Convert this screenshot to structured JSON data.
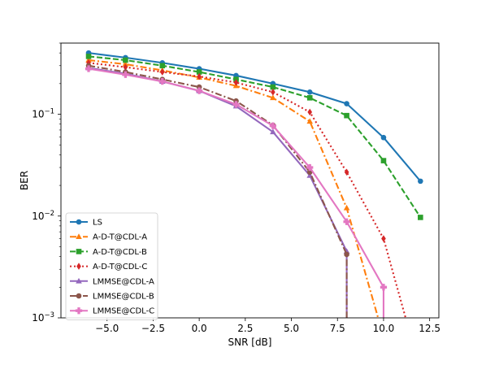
{
  "chart_data": {
    "type": "line",
    "xlabel": "SNR [dB]",
    "ylabel": "BER",
    "xlim": [
      -7.5,
      13.0
    ],
    "ylim": [
      0.001,
      0.5
    ],
    "yscale": "log",
    "grid": false,
    "legend_position": "lower-left",
    "x_ticks": [
      -5.0,
      -2.5,
      0.0,
      2.5,
      5.0,
      7.5,
      10.0,
      12.5
    ],
    "x_tick_labels": [
      "−5.0",
      "−2.5",
      "0.0",
      "2.5",
      "5.0",
      "7.5",
      "10.0",
      "12.5"
    ],
    "y_ticks": [
      0.001,
      0.01,
      0.1
    ],
    "y_tick_labels": [
      {
        "base": "10",
        "exp": "−3"
      },
      {
        "base": "10",
        "exp": "−2"
      },
      {
        "base": "10",
        "exp": "−1"
      }
    ],
    "series": [
      {
        "name": "LS",
        "color": "#1f77b4",
        "dash": "solid",
        "marker": "circle",
        "x": [
          -6,
          -4,
          -2,
          0,
          2,
          4,
          6,
          8,
          10,
          12
        ],
        "y": [
          0.4,
          0.36,
          0.32,
          0.28,
          0.24,
          0.2,
          0.165,
          0.127,
          0.059,
          0.022
        ]
      },
      {
        "name": "A-D-T@CDL-A",
        "color": "#ff7f0e",
        "dash": "dashdot",
        "marker": "triangle-up",
        "x": [
          -6,
          -4,
          -2,
          0,
          2,
          4,
          6,
          8,
          10
        ],
        "y": [
          0.34,
          0.31,
          0.27,
          0.23,
          0.19,
          0.145,
          0.085,
          0.012,
          0.00065
        ]
      },
      {
        "name": "A-D-T@CDL-B",
        "color": "#2ca02c",
        "dash": "dashed",
        "marker": "square",
        "x": [
          -6,
          -4,
          -2,
          0,
          2,
          4,
          6,
          8,
          10,
          12
        ],
        "y": [
          0.37,
          0.34,
          0.3,
          0.26,
          0.22,
          0.185,
          0.145,
          0.097,
          0.035,
          0.0097
        ]
      },
      {
        "name": "A-D-T@CDL-C",
        "color": "#d62728",
        "dash": "dotted",
        "marker": "diamond",
        "x": [
          -6,
          -4,
          -2,
          0,
          2,
          4,
          6,
          8,
          10,
          12
        ],
        "y": [
          0.32,
          0.29,
          0.26,
          0.235,
          0.205,
          0.165,
          0.105,
          0.027,
          0.006,
          0.0003
        ]
      },
      {
        "name": "LMMSE@CDL-A",
        "color": "#9467bd",
        "dash": "solid",
        "marker": "triangle-up",
        "x": [
          -6,
          -4,
          -2,
          0,
          2,
          4,
          6,
          8,
          8
        ],
        "y": [
          0.285,
          0.25,
          0.21,
          0.17,
          0.12,
          0.067,
          0.025,
          0.0045,
          0.0005
        ]
      },
      {
        "name": "LMMSE@CDL-B",
        "color": "#8c564b",
        "dash": "dashdot",
        "marker": "circle",
        "x": [
          -6,
          -4,
          -2,
          0,
          2,
          4,
          6,
          8,
          8
        ],
        "y": [
          0.3,
          0.26,
          0.22,
          0.185,
          0.135,
          0.078,
          0.027,
          0.0042,
          0.0005
        ]
      },
      {
        "name": "LMMSE@CDL-C",
        "color": "#e377c2",
        "dash": "solid",
        "marker": "plus-filled",
        "x": [
          -6,
          -4,
          -2,
          0,
          2,
          4,
          6,
          8,
          10,
          10
        ],
        "y": [
          0.28,
          0.245,
          0.21,
          0.17,
          0.125,
          0.077,
          0.03,
          0.0088,
          0.002,
          0.0005
        ]
      }
    ]
  }
}
